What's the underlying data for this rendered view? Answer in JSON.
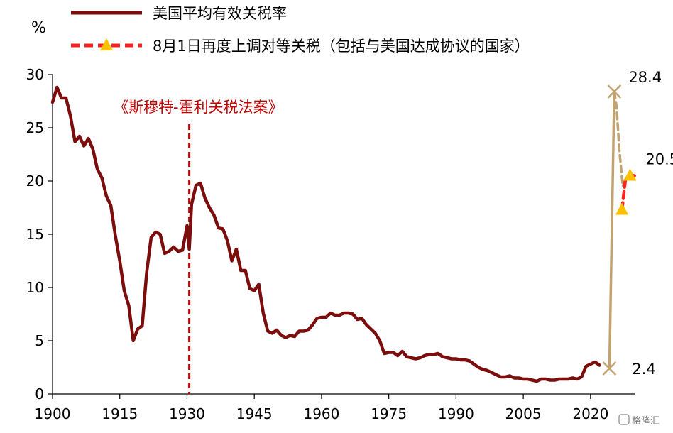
{
  "chart_data": {
    "type": "line",
    "ylabel_unit": "%",
    "xlim": [
      1900,
      2030
    ],
    "ylim": [
      0,
      30
    ],
    "x_ticks": [
      1900,
      1915,
      1930,
      1945,
      1960,
      1975,
      1990,
      2005,
      2020
    ],
    "y_ticks": [
      0,
      5,
      10,
      15,
      20,
      25,
      30
    ],
    "grid": false,
    "legend_position": "top",
    "series": [
      {
        "name": "美国平均有效关税率",
        "color": "#7b0d0d",
        "style": "solid",
        "points": [
          [
            1900,
            27.4
          ],
          [
            1901,
            28.8
          ],
          [
            1902,
            27.8
          ],
          [
            1903,
            27.8
          ],
          [
            1904,
            26.1
          ],
          [
            1905,
            23.7
          ],
          [
            1906,
            24.2
          ],
          [
            1907,
            23.3
          ],
          [
            1908,
            24.0
          ],
          [
            1909,
            23.0
          ],
          [
            1910,
            21.1
          ],
          [
            1911,
            20.3
          ],
          [
            1912,
            18.6
          ],
          [
            1913,
            17.7
          ],
          [
            1914,
            14.9
          ],
          [
            1915,
            12.5
          ],
          [
            1916,
            9.7
          ],
          [
            1917,
            8.3
          ],
          [
            1918,
            5.0
          ],
          [
            1919,
            6.1
          ],
          [
            1920,
            6.4
          ],
          [
            1921,
            11.4
          ],
          [
            1922,
            14.7
          ],
          [
            1923,
            15.2
          ],
          [
            1924,
            15.0
          ],
          [
            1925,
            13.2
          ],
          [
            1926,
            13.4
          ],
          [
            1927,
            13.8
          ],
          [
            1928,
            13.4
          ],
          [
            1929,
            13.5
          ],
          [
            1930,
            15.8
          ],
          [
            1930.5,
            13.6
          ],
          [
            1931,
            17.8
          ],
          [
            1932,
            19.6
          ],
          [
            1933,
            19.8
          ],
          [
            1934,
            18.4
          ],
          [
            1935,
            17.5
          ],
          [
            1936,
            16.8
          ],
          [
            1937,
            15.6
          ],
          [
            1938,
            15.5
          ],
          [
            1939,
            14.4
          ],
          [
            1940,
            12.5
          ],
          [
            1941,
            13.6
          ],
          [
            1942,
            11.6
          ],
          [
            1943,
            11.6
          ],
          [
            1944,
            9.9
          ],
          [
            1945,
            9.7
          ],
          [
            1946,
            10.3
          ],
          [
            1947,
            7.6
          ],
          [
            1948,
            5.9
          ],
          [
            1949,
            5.7
          ],
          [
            1950,
            6.0
          ],
          [
            1951,
            5.5
          ],
          [
            1952,
            5.3
          ],
          [
            1953,
            5.5
          ],
          [
            1954,
            5.4
          ],
          [
            1955,
            5.9
          ],
          [
            1956,
            5.9
          ],
          [
            1957,
            6.0
          ],
          [
            1958,
            6.5
          ],
          [
            1959,
            7.1
          ],
          [
            1960,
            7.2
          ],
          [
            1961,
            7.2
          ],
          [
            1962,
            7.6
          ],
          [
            1963,
            7.4
          ],
          [
            1964,
            7.4
          ],
          [
            1965,
            7.6
          ],
          [
            1966,
            7.6
          ],
          [
            1967,
            7.5
          ],
          [
            1968,
            7.0
          ],
          [
            1969,
            7.1
          ],
          [
            1970,
            6.5
          ],
          [
            1971,
            6.1
          ],
          [
            1972,
            5.7
          ],
          [
            1973,
            5.0
          ],
          [
            1974,
            3.8
          ],
          [
            1975,
            3.9
          ],
          [
            1976,
            3.9
          ],
          [
            1977,
            3.6
          ],
          [
            1978,
            4.0
          ],
          [
            1979,
            3.5
          ],
          [
            1980,
            3.4
          ],
          [
            1981,
            3.3
          ],
          [
            1982,
            3.4
          ],
          [
            1983,
            3.6
          ],
          [
            1984,
            3.7
          ],
          [
            1985,
            3.7
          ],
          [
            1986,
            3.8
          ],
          [
            1987,
            3.5
          ],
          [
            1988,
            3.4
          ],
          [
            1989,
            3.3
          ],
          [
            1990,
            3.3
          ],
          [
            1991,
            3.2
          ],
          [
            1992,
            3.2
          ],
          [
            1993,
            3.1
          ],
          [
            1994,
            2.8
          ],
          [
            1995,
            2.5
          ],
          [
            1996,
            2.3
          ],
          [
            1997,
            2.2
          ],
          [
            1998,
            2.0
          ],
          [
            1999,
            1.8
          ],
          [
            2000,
            1.6
          ],
          [
            2001,
            1.6
          ],
          [
            2002,
            1.7
          ],
          [
            2003,
            1.5
          ],
          [
            2004,
            1.5
          ],
          [
            2005,
            1.4
          ],
          [
            2006,
            1.4
          ],
          [
            2007,
            1.3
          ],
          [
            2008,
            1.2
          ],
          [
            2009,
            1.4
          ],
          [
            2010,
            1.4
          ],
          [
            2011,
            1.3
          ],
          [
            2012,
            1.3
          ],
          [
            2013,
            1.4
          ],
          [
            2014,
            1.4
          ],
          [
            2015,
            1.4
          ],
          [
            2016,
            1.5
          ],
          [
            2017,
            1.4
          ],
          [
            2018,
            1.6
          ],
          [
            2019,
            2.6
          ],
          [
            2020,
            2.8
          ],
          [
            2021,
            3.0
          ],
          [
            2022,
            2.7
          ]
        ]
      },
      {
        "name": "",
        "color": "#c2a26e",
        "style": "solid",
        "points": [
          [
            2024.2,
            2.4
          ],
          [
            2025.3,
            28.4
          ]
        ]
      },
      {
        "name": "",
        "color": "#c2a26e",
        "style": "dashed",
        "points": [
          [
            2025.3,
            28.4
          ],
          [
            2025.8,
            27.0
          ],
          [
            2026.4,
            23.0
          ],
          [
            2027.2,
            19.5
          ],
          [
            2027.9,
            20.2
          ]
        ]
      },
      {
        "name": "8月1日再度上调对等关税（包括与美国达成协议的国家）",
        "color": "#ff2020",
        "style": "dashed",
        "marker": "triangle",
        "marker_color": "#ffc000",
        "points": [
          [
            2027.0,
            17.3
          ],
          [
            2027.8,
            20.2
          ],
          [
            2028.7,
            20.5
          ],
          [
            2030.0,
            20.5
          ]
        ]
      }
    ],
    "markers_x": [
      {
        "x": 2024.2,
        "y": 2.4,
        "color": "#c2a26e"
      },
      {
        "x": 2025.3,
        "y": 28.4,
        "color": "#c2a26e"
      }
    ],
    "markers_triangle": [
      {
        "x": 2027.0,
        "y": 17.3
      },
      {
        "x": 2028.8,
        "y": 20.5
      }
    ],
    "annotations": [
      {
        "id": "a284",
        "text": "28.4",
        "x": 2025.3,
        "y": 28.4
      },
      {
        "id": "a205",
        "text": "20.5",
        "x": 2028.8,
        "y": 20.5
      },
      {
        "id": "a24",
        "text": "2.4",
        "x": 2024.2,
        "y": 2.4
      }
    ],
    "event_line": {
      "x": 1930.5,
      "label": "《斯穆特-霍利关税法案》",
      "color": "#c00000"
    }
  },
  "watermark": "格隆汇"
}
